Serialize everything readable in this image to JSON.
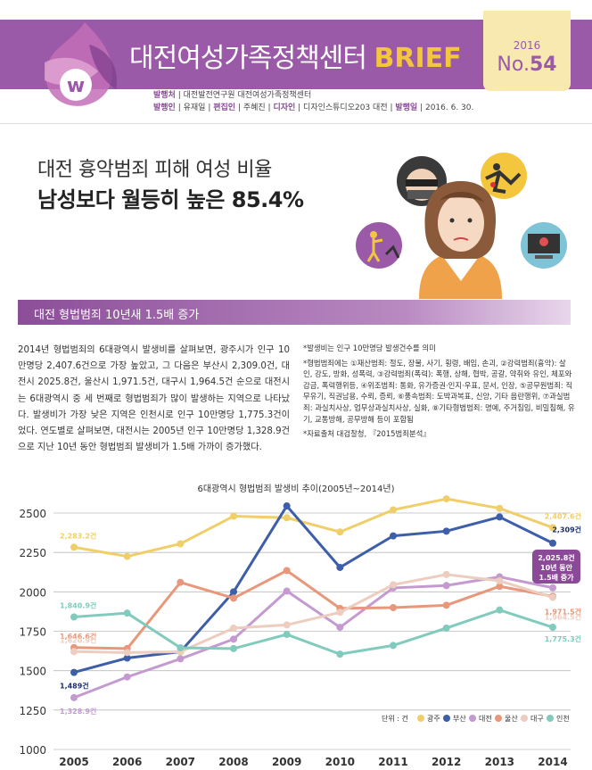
{
  "header": {
    "brand_name": "대전여성가족정책센터",
    "brand_suffix": "BRIEF",
    "issue_year": "2016",
    "issue_prefix": "No.",
    "issue_number": "54",
    "meta_line1": [
      {
        "label": "발행처",
        "value": "대전발전연구원 대전여성가족정책센터"
      }
    ],
    "meta_line2": [
      {
        "label": "발행인",
        "value": "유재일"
      },
      {
        "label": "편집인",
        "value": "주혜진"
      },
      {
        "label": "디자인",
        "value": "디자인스튜디오203 대전"
      },
      {
        "label": "발행일",
        "value": "2016. 6. 30."
      }
    ],
    "colors": {
      "band": "#9b5aa8",
      "accent": "#f4c63d"
    }
  },
  "headline": {
    "line1": "대전 흉악범죄 피해 여성 비율",
    "line2": "남성보다 월등히 높은 85.4%"
  },
  "illustration": {
    "icons": [
      "robber-icon",
      "falling-person-icon",
      "assault-icon",
      "computer-crime-icon",
      "worried-woman-figure"
    ]
  },
  "section": {
    "title": "대전 형법범죄 10년새 1.5배 증가"
  },
  "body": {
    "paragraph": "2014년 형법범죄의 6대광역시 발생비를 살펴보면, 광주시가 인구 10만명당 2,407.6건으로 가장 높았고, 그 다음은 부산시 2,309.0건, 대전시 2025.8건, 울산시 1,971.5건, 대구시 1,964.5건 순으로 대전시는 6대광역시 중 세 번째로 형법범죄가 많이 발생하는 지역으로 나타났다. 발생비가 가장 낮은 지역은 인천시로 인구 10만명당 1,775.3건이었다. 연도별로 살펴보면, 대전시는 2005년 인구 10만명당 1,328.9건으로 지난 10년 동안 형법범죄 발생비가 1.5배 가까이 증가했다."
  },
  "notes": [
    "*발생비는 인구 10만명당 발생건수를 의미",
    "*형법범죄에는 ①재산범죄: 절도, 장물, 사기, 횡령, 배임, 손괴, ②강력범죄(흉악): 살인, 강도, 방화, 성폭력, ③강력범죄(폭력): 폭행, 상해, 협박, 공갈, 약취와 유인, 체포와 감금, 폭력행위등, ④위조범죄: 통화, 유가증권·인지·우표, 문서, 인장, ⑤공무원범죄: 직무유기, 직권남용, 수뢰, 증뢰, ⑥풍속범죄: 도박과복표, 신앙, 기타 음란행위, ⑦과실범죄: 과실치사상, 업무상과실치사상, 실화, ⑧기타형법범죄: 명예, 주거침입, 비밀침해, 유기, 교통방해, 공무방해 등이 포함됨",
    "*자료출처 대검찰청, 『2015범죄분석』"
  ],
  "chart_data": {
    "type": "line",
    "title": "6대광역시 형법범죄 발생비 추이(2005년~2014년)",
    "x": [
      "2005",
      "2006",
      "2007",
      "2008",
      "2009",
      "2010",
      "2011",
      "2012",
      "2013",
      "2014"
    ],
    "ylim": [
      1000,
      2500
    ],
    "yticks": [
      "1000",
      "1250",
      "1500",
      "1750",
      "2000",
      "2250",
      "2500"
    ],
    "legend_unit": "단위 : 건",
    "legend_position": "bottom-right",
    "series": [
      {
        "name": "광주",
        "color": "#f0cf6a",
        "values": [
          2283.2,
          2225,
          2305,
          2480,
          2470,
          2380,
          2520,
          2590,
          2530,
          2407.6
        ]
      },
      {
        "name": "부산",
        "color": "#3d5ea8",
        "values": [
          1489,
          1580,
          1620,
          2000,
          2545,
          2155,
          2355,
          2385,
          2475,
          2309
        ]
      },
      {
        "name": "대전",
        "color": "#c49ad0",
        "values": [
          1328.9,
          1460,
          1575,
          1700,
          2005,
          1775,
          2025,
          2040,
          2095,
          2025.8
        ]
      },
      {
        "name": "울산",
        "color": "#e8977a",
        "values": [
          1646.6,
          1640,
          2060,
          1960,
          2135,
          1895,
          1900,
          1915,
          2035,
          1971.5
        ]
      },
      {
        "name": "대구",
        "color": "#eccdbf",
        "values": [
          1620.9,
          1615,
          1620,
          1770,
          1790,
          1870,
          2045,
          2110,
          2070,
          1964.5
        ]
      },
      {
        "name": "인천",
        "color": "#80cbbd",
        "values": [
          1840.9,
          1865,
          1645,
          1640,
          1730,
          1605,
          1660,
          1770,
          1885,
          1775.3
        ]
      }
    ],
    "annotations": {
      "start": [
        {
          "series": "광주",
          "text": "2,283.2건"
        },
        {
          "series": "인천",
          "text": "1,840.9건"
        },
        {
          "series": "울산",
          "text": "1,646.6건"
        },
        {
          "series": "대구",
          "text": "1,620.9건"
        },
        {
          "series": "부산",
          "text": "1,489건"
        },
        {
          "series": "대전",
          "text": "1,328.9건"
        }
      ],
      "end": [
        {
          "series": "광주",
          "text": "2,407.6건"
        },
        {
          "series": "부산",
          "text": "2,309건"
        },
        {
          "series": "울산",
          "text": "1,971.5건"
        },
        {
          "series": "대구",
          "text": "1,964.5건"
        },
        {
          "series": "인천",
          "text": "1,775.3건"
        }
      ],
      "callout": {
        "series": "대전",
        "lines": [
          "2,025.8건",
          "10년 동안",
          "1.5배 증가"
        ],
        "color": "#8a4a97"
      }
    }
  }
}
